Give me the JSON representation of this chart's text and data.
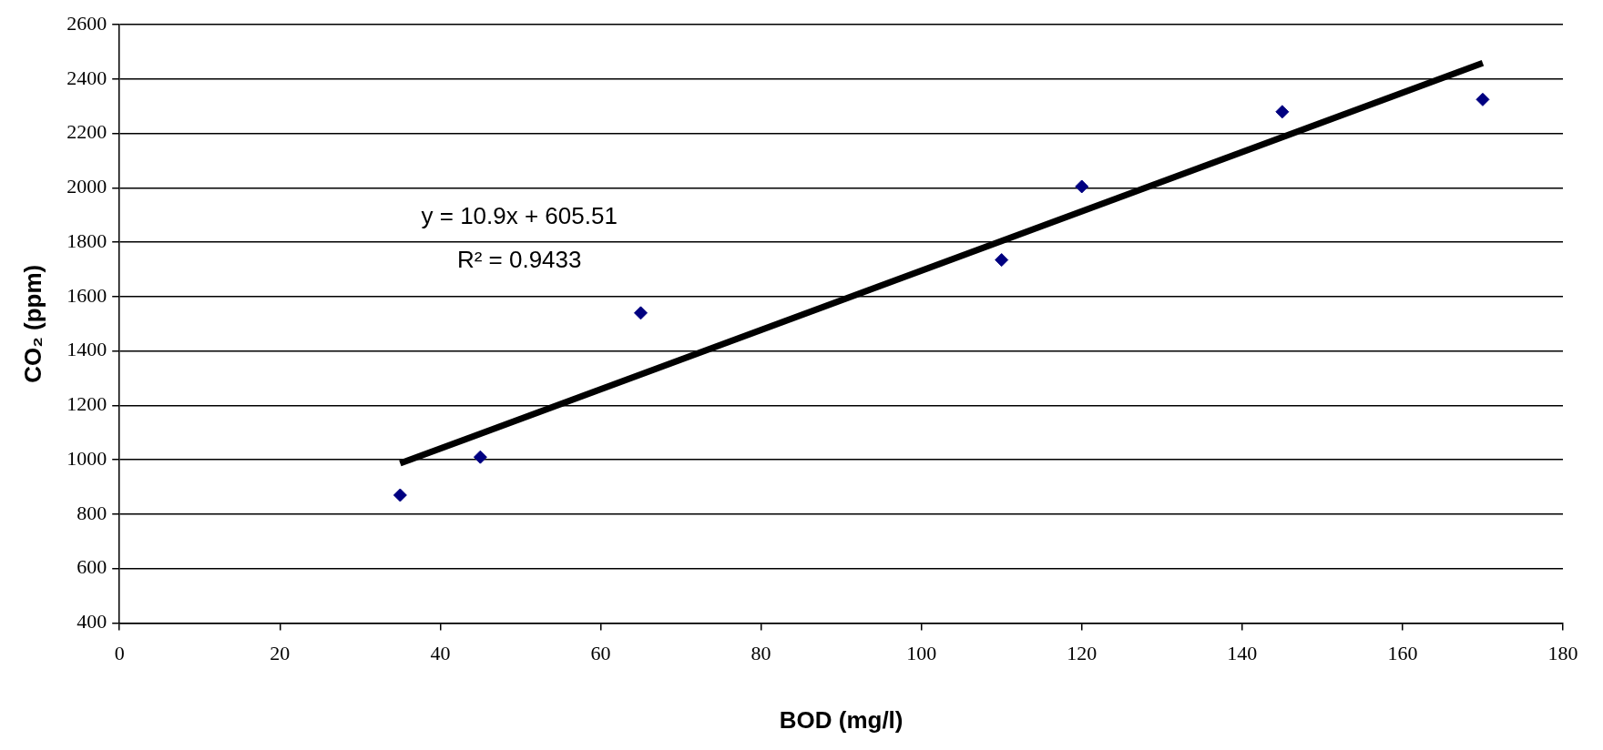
{
  "chart_data": {
    "type": "scatter",
    "xlabel": "BOD (mg/l)",
    "ylabel": "CO₂ (ppm)",
    "x": [
      35,
      45,
      65,
      110,
      120,
      145,
      170
    ],
    "series": [
      {
        "type": "scatter",
        "color": "#000080",
        "marker": "diamond",
        "values": [
          870,
          1010,
          1540,
          1735,
          2005,
          2280,
          2325
        ]
      },
      {
        "type": "line",
        "color": "#000000",
        "marker": "none",
        "line_style": "solid",
        "x": [
          35,
          170
        ],
        "values": [
          987,
          2459
        ]
      }
    ],
    "annotations": [
      "y = 10.9x + 605.51",
      "R² = 0.9433"
    ],
    "xlim": [
      0,
      180
    ],
    "xticks": [
      0,
      20,
      40,
      60,
      80,
      100,
      120,
      140,
      160,
      180
    ],
    "ylim": [
      400,
      2600
    ],
    "yticks": [
      400,
      600,
      800,
      1000,
      1200,
      1400,
      1600,
      1800,
      2000,
      2200,
      2400,
      2600
    ],
    "grid": "y",
    "legend": false
  }
}
